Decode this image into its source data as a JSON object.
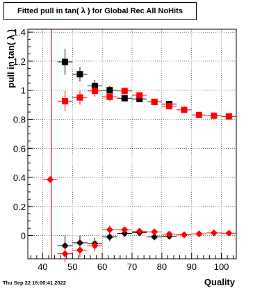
{
  "header": {
    "title": "Fitted pull in tan( λ ) for Global Rec All NoHits"
  },
  "footer": {
    "timestamp": "Thu Sep 22 16:00:41 2022"
  },
  "chart_data": {
    "type": "scatter",
    "title": "Fitted pull in tan( λ ) for Global Rec All NoHits",
    "xlabel": "Quality",
    "ylabel": "pull in tan( λ )",
    "xlim": [
      35,
      105
    ],
    "ylim": [
      -0.16,
      1.42
    ],
    "x_ticks": [
      40,
      50,
      60,
      70,
      80,
      90,
      100
    ],
    "y_ticks": [
      0,
      0.2,
      0.4,
      0.6,
      0.8,
      1,
      1.2,
      1.4
    ],
    "y_tick_labels": [
      "0",
      "0.2",
      "0.4",
      "0.6",
      "0.8",
      "1",
      "1.2",
      "1.4"
    ],
    "grid": true,
    "reference_line": {
      "x": 43,
      "color": "#ff0000"
    },
    "series": [
      {
        "marker": "square",
        "color": "#000000",
        "points": [
          {
            "x": 47.5,
            "y": 1.195,
            "yerr": 0.09
          },
          {
            "x": 52.5,
            "y": 1.11,
            "yerr": 0.05
          },
          {
            "x": 57.5,
            "y": 1.03,
            "yerr": 0.04
          },
          {
            "x": 62.5,
            "y": 1.0,
            "yerr": 0.03
          },
          {
            "x": 67.5,
            "y": 0.945,
            "yerr": 0.02
          },
          {
            "x": 72.5,
            "y": 0.94,
            "yerr": 0.02
          },
          {
            "x": 77.5,
            "y": 0.92,
            "yerr": 0.02
          },
          {
            "x": 82.5,
            "y": 0.905,
            "yerr": 0.015
          }
        ]
      },
      {
        "marker": "square",
        "color": "#ff0000",
        "points": [
          {
            "x": 47.5,
            "y": 0.925,
            "yerr": 0.07
          },
          {
            "x": 52.5,
            "y": 0.95,
            "yerr": 0.05
          },
          {
            "x": 57.5,
            "y": 0.995,
            "yerr": 0.04
          },
          {
            "x": 62.5,
            "y": 0.955,
            "yerr": 0.03
          },
          {
            "x": 67.5,
            "y": 0.995,
            "yerr": 0.02
          },
          {
            "x": 72.5,
            "y": 0.965,
            "yerr": 0.02
          },
          {
            "x": 77.5,
            "y": 0.92,
            "yerr": 0.015
          },
          {
            "x": 82.5,
            "y": 0.89,
            "yerr": 0.015
          },
          {
            "x": 87.5,
            "y": 0.865,
            "yerr": 0.01
          },
          {
            "x": 92.5,
            "y": 0.83,
            "yerr": 0.01
          },
          {
            "x": 97.5,
            "y": 0.825,
            "yerr": 0.01
          },
          {
            "x": 102.5,
            "y": 0.82,
            "yerr": 0.01
          }
        ]
      },
      {
        "marker": "diamond",
        "color": "#000000",
        "points": [
          {
            "x": 47.5,
            "y": -0.07,
            "yerr": 0.07
          },
          {
            "x": 52.5,
            "y": -0.05,
            "yerr": 0.05
          },
          {
            "x": 57.5,
            "y": -0.055,
            "yerr": 0.04
          },
          {
            "x": 62.5,
            "y": -0.01,
            "yerr": 0.03
          },
          {
            "x": 67.5,
            "y": 0.015,
            "yerr": 0.02
          },
          {
            "x": 72.5,
            "y": 0.02,
            "yerr": 0.02
          },
          {
            "x": 77.5,
            "y": -0.01,
            "yerr": 0.015
          },
          {
            "x": 82.5,
            "y": -0.005,
            "yerr": 0.015
          }
        ]
      },
      {
        "marker": "diamond",
        "color": "#ff0000",
        "points": [
          {
            "x": 42.5,
            "y": 0.385,
            "yerr": 0.0
          },
          {
            "x": 47.5,
            "y": -0.125,
            "yerr": 0.06
          },
          {
            "x": 52.5,
            "y": -0.1,
            "yerr": 0.05
          },
          {
            "x": 57.5,
            "y": -0.07,
            "yerr": 0.04
          },
          {
            "x": 62.5,
            "y": 0.04,
            "yerr": 0.03
          },
          {
            "x": 67.5,
            "y": 0.04,
            "yerr": 0.02
          },
          {
            "x": 72.5,
            "y": 0.03,
            "yerr": 0.02
          },
          {
            "x": 77.5,
            "y": 0.025,
            "yerr": 0.015
          },
          {
            "x": 82.5,
            "y": 0.01,
            "yerr": 0.015
          },
          {
            "x": 87.5,
            "y": 0.005,
            "yerr": 0.01
          },
          {
            "x": 92.5,
            "y": 0.012,
            "yerr": 0.01
          },
          {
            "x": 97.5,
            "y": 0.018,
            "yerr": 0.01
          },
          {
            "x": 102.5,
            "y": 0.016,
            "yerr": 0.01
          }
        ]
      }
    ]
  }
}
